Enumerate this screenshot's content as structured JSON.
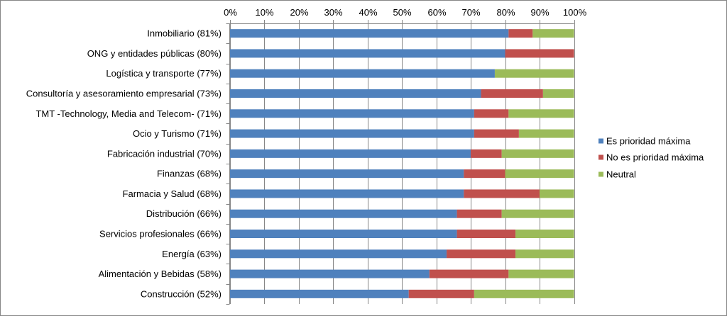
{
  "chart_data": {
    "type": "bar",
    "orientation": "horizontal",
    "stacked": "percent",
    "title": "",
    "xlabel": "",
    "ylabel": "",
    "x_axis_side": "top",
    "xlim": [
      0,
      100
    ],
    "x_ticks": [
      0,
      10,
      20,
      30,
      40,
      50,
      60,
      70,
      80,
      90,
      100
    ],
    "x_tick_labels": [
      "0%",
      "10%",
      "20%",
      "30%",
      "40%",
      "50%",
      "60%",
      "70%",
      "80%",
      "90%",
      "100%"
    ],
    "grid": true,
    "legend": "right",
    "categories": [
      "Inmobiliario (81%)",
      "ONG y entidades públicas (80%)",
      "Logística y transporte (77%)",
      "Consultoría y asesoramiento empresarial (73%)",
      "TMT -Technology, Media and Telecom- (71%)",
      "Ocio y Turismo (71%)",
      "Fabricación industrial (70%)",
      "Finanzas (68%)",
      "Farmacia y Salud (68%)",
      "Distribución (66%)",
      "Servicios profesionales (66%)",
      "Energía (63%)",
      "Alimentación y Bebidas (58%)",
      "Construcción (52%)"
    ],
    "series": [
      {
        "name": "Es prioridad máxima",
        "color": "#4F81BD",
        "values": [
          81,
          80,
          77,
          73,
          71,
          71,
          70,
          68,
          68,
          66,
          66,
          63,
          58,
          52
        ]
      },
      {
        "name": "No es prioridad máxima",
        "color": "#C0504D",
        "values": [
          7,
          20,
          0,
          18,
          10,
          13,
          9,
          12,
          22,
          13,
          17,
          20,
          23,
          19
        ]
      },
      {
        "name": "Neutral",
        "color": "#9BBB59",
        "values": [
          12,
          0,
          23,
          9,
          19,
          16,
          21,
          20,
          10,
          21,
          17,
          17,
          19,
          29
        ]
      }
    ],
    "grid_color": "#868686",
    "border_color": "#868686"
  }
}
